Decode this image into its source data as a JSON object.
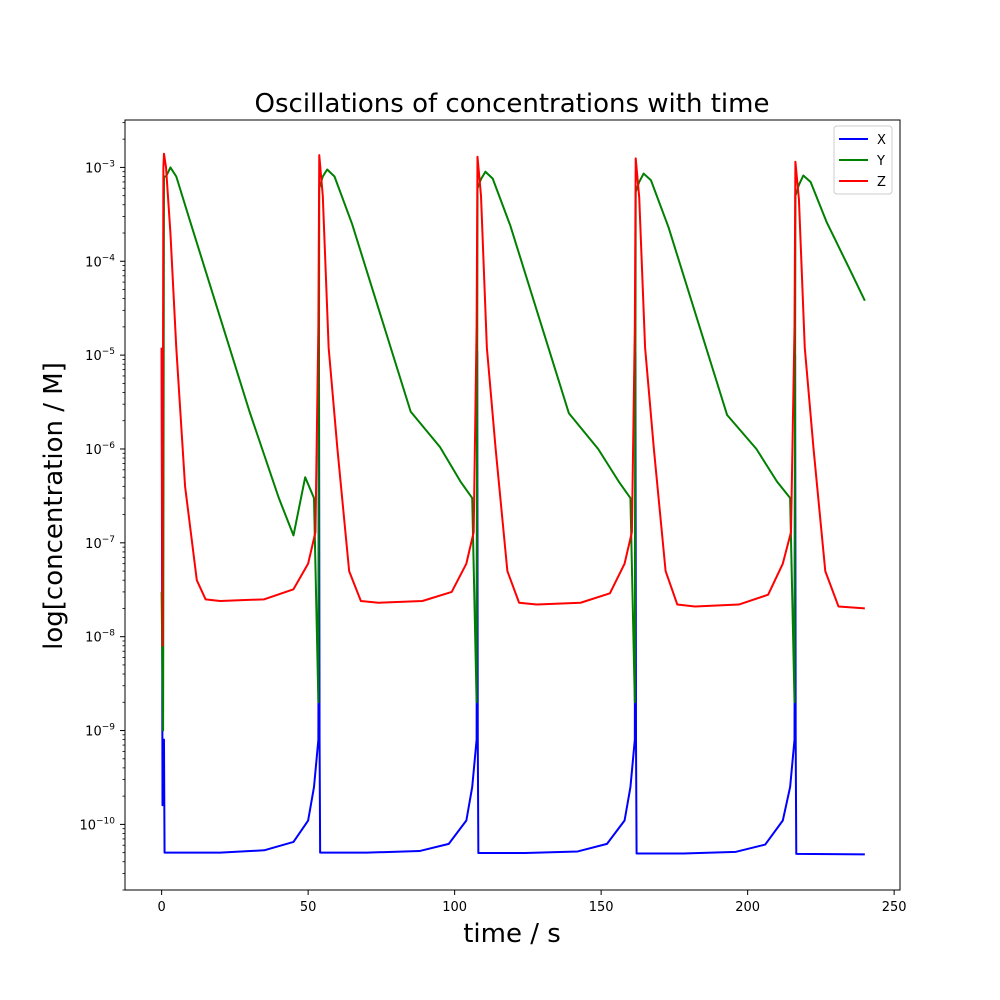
{
  "chart_data": {
    "type": "line",
    "title": "Oscillations of concentrations with time",
    "xlabel": "time / s",
    "ylabel": "log[concentration / M]",
    "xlim": [
      -12.5,
      252
    ],
    "ylim": [
      2e-11,
      0.0032
    ],
    "yscale": "log",
    "grid": false,
    "legend": "top-right",
    "x_ticks": [
      {
        "value": 0,
        "label": "0"
      },
      {
        "value": 50,
        "label": "50"
      },
      {
        "value": 100,
        "label": "100"
      },
      {
        "value": 150,
        "label": "150"
      },
      {
        "value": 200,
        "label": "200"
      },
      {
        "value": 250,
        "label": "250"
      }
    ],
    "y_ticks": [
      {
        "value": 1e-10,
        "base": "10",
        "exp": "−10"
      },
      {
        "value": 1e-09,
        "base": "10",
        "exp": "−9"
      },
      {
        "value": 1e-08,
        "base": "10",
        "exp": "−8"
      },
      {
        "value": 1e-07,
        "base": "10",
        "exp": "−7"
      },
      {
        "value": 1e-06,
        "base": "10",
        "exp": "−6"
      },
      {
        "value": 1e-05,
        "base": "10",
        "exp": "−5"
      },
      {
        "value": 0.0001,
        "base": "10",
        "exp": "−4"
      },
      {
        "value": 0.001,
        "base": "10",
        "exp": "−3"
      }
    ],
    "series": [
      {
        "name": "X",
        "color": "#0000ff",
        "points": [
          [
            0,
            1.2e-05
          ],
          [
            0.3,
            1.6e-10
          ],
          [
            0.6,
            8e-10
          ],
          [
            0.8,
            8e-10
          ],
          [
            1.0,
            5e-11
          ],
          [
            20,
            5e-11
          ],
          [
            35,
            5.3e-11
          ],
          [
            45,
            6.5e-11
          ],
          [
            50,
            1.1e-10
          ],
          [
            52,
            2.5e-10
          ],
          [
            53.5,
            8e-10
          ],
          [
            53.7,
            1.2e-05
          ],
          [
            53.9,
            8e-10
          ],
          [
            54.1,
            5e-11
          ],
          [
            70,
            5e-11
          ],
          [
            88,
            5.2e-11
          ],
          [
            98,
            6.2e-11
          ],
          [
            104,
            1.1e-10
          ],
          [
            106,
            2.5e-10
          ],
          [
            107.5,
            8e-10
          ],
          [
            107.7,
            1.1e-05
          ],
          [
            107.9,
            8e-10
          ],
          [
            108.1,
            4.95e-11
          ],
          [
            124,
            4.95e-11
          ],
          [
            142,
            5.15e-11
          ],
          [
            152,
            6.2e-11
          ],
          [
            158,
            1.1e-10
          ],
          [
            160,
            2.5e-10
          ],
          [
            161.5,
            8e-10
          ],
          [
            161.7,
            1.05e-05
          ],
          [
            161.9,
            8e-10
          ],
          [
            162.1,
            4.9e-11
          ],
          [
            178,
            4.9e-11
          ],
          [
            196,
            5.1e-11
          ],
          [
            206,
            6.1e-11
          ],
          [
            212,
            1.1e-10
          ],
          [
            214.5,
            2.5e-10
          ],
          [
            216,
            8e-10
          ],
          [
            216.2,
            1e-05
          ],
          [
            216.4,
            8e-10
          ],
          [
            216.6,
            4.85e-11
          ],
          [
            240,
            4.8e-11
          ]
        ]
      },
      {
        "name": "Y",
        "color": "#008000",
        "points": [
          [
            0,
            3e-08
          ],
          [
            0.5,
            1e-09
          ],
          [
            0.8,
            0.0008
          ],
          [
            1.5,
            0.0008
          ],
          [
            3,
            0.001
          ],
          [
            5,
            0.0008
          ],
          [
            10,
            0.00025
          ],
          [
            20,
            2.5e-05
          ],
          [
            30,
            2.5e-06
          ],
          [
            40,
            3e-07
          ],
          [
            45,
            1.2e-07
          ],
          [
            49,
            5e-07
          ],
          [
            52,
            3e-07
          ],
          [
            53.5,
            2e-09
          ],
          [
            53.8,
            0.0006
          ],
          [
            55,
            0.0008
          ],
          [
            56.5,
            0.00095
          ],
          [
            59,
            0.0008
          ],
          [
            65,
            0.00025
          ],
          [
            75,
            2.5e-05
          ],
          [
            85,
            2.5e-06
          ],
          [
            95,
            1.05e-06
          ],
          [
            102,
            4.5e-07
          ],
          [
            106,
            3e-07
          ],
          [
            107.5,
            2e-09
          ],
          [
            107.8,
            0.0006
          ],
          [
            109,
            0.00075
          ],
          [
            110.5,
            0.0009
          ],
          [
            113,
            0.00076
          ],
          [
            119,
            0.00024
          ],
          [
            129,
            2.4e-05
          ],
          [
            139,
            2.4e-06
          ],
          [
            149,
            1e-06
          ],
          [
            156,
            4.5e-07
          ],
          [
            160,
            3e-07
          ],
          [
            161.5,
            2e-09
          ],
          [
            161.8,
            0.00055
          ],
          [
            163,
            0.0007
          ],
          [
            164.5,
            0.00086
          ],
          [
            167,
            0.00073
          ],
          [
            173,
            0.00023
          ],
          [
            183,
            2.3e-05
          ],
          [
            193,
            2.3e-06
          ],
          [
            203,
            1e-06
          ],
          [
            210,
            4.5e-07
          ],
          [
            214.5,
            3e-07
          ],
          [
            216,
            2e-09
          ],
          [
            216.3,
            0.0005
          ],
          [
            217.5,
            0.00065
          ],
          [
            219,
            0.00082
          ],
          [
            221.5,
            0.0007
          ],
          [
            227,
            0.00026
          ],
          [
            235,
            8e-05
          ],
          [
            240,
            3.8e-05
          ]
        ]
      },
      {
        "name": "Z",
        "color": "#ff0000",
        "points": [
          [
            0,
            1.2e-05
          ],
          [
            0.3,
            8e-09
          ],
          [
            0.6,
            0.001
          ],
          [
            0.8,
            0.0014
          ],
          [
            1.5,
            0.001
          ],
          [
            3,
            0.0002
          ],
          [
            5,
            1.2e-05
          ],
          [
            8,
            4e-07
          ],
          [
            12,
            4e-08
          ],
          [
            15,
            2.5e-08
          ],
          [
            20,
            2.4e-08
          ],
          [
            35,
            2.5e-08
          ],
          [
            45,
            3.2e-08
          ],
          [
            50,
            6e-08
          ],
          [
            52.5,
            1.3e-07
          ],
          [
            53.5,
            2e-05
          ],
          [
            53.8,
            0.00135
          ],
          [
            55,
            0.0005
          ],
          [
            57,
            1.2e-05
          ],
          [
            60,
            1e-06
          ],
          [
            64,
            5e-08
          ],
          [
            68,
            2.4e-08
          ],
          [
            74,
            2.3e-08
          ],
          [
            89,
            2.4e-08
          ],
          [
            99,
            3e-08
          ],
          [
            104,
            6e-08
          ],
          [
            106.5,
            1.3e-07
          ],
          [
            107.5,
            2e-05
          ],
          [
            107.8,
            0.0013
          ],
          [
            109,
            0.0005
          ],
          [
            111,
            1.2e-05
          ],
          [
            114,
            1e-06
          ],
          [
            118,
            5e-08
          ],
          [
            122,
            2.3e-08
          ],
          [
            128,
            2.2e-08
          ],
          [
            143,
            2.3e-08
          ],
          [
            153,
            2.9e-08
          ],
          [
            158,
            6e-08
          ],
          [
            160.5,
            1.3e-07
          ],
          [
            161.5,
            2e-05
          ],
          [
            161.8,
            0.00125
          ],
          [
            163,
            0.00048
          ],
          [
            165,
            1.2e-05
          ],
          [
            168,
            1e-06
          ],
          [
            172,
            5e-08
          ],
          [
            176,
            2.2e-08
          ],
          [
            182,
            2.1e-08
          ],
          [
            197,
            2.2e-08
          ],
          [
            207,
            2.8e-08
          ],
          [
            212,
            6e-08
          ],
          [
            214.8,
            1.3e-07
          ],
          [
            216,
            2e-05
          ],
          [
            216.3,
            0.00115
          ],
          [
            217.5,
            0.00046
          ],
          [
            219.5,
            1.2e-05
          ],
          [
            222.5,
            1e-06
          ],
          [
            226.5,
            5e-08
          ],
          [
            231,
            2.1e-08
          ],
          [
            240,
            2e-08
          ]
        ]
      }
    ]
  }
}
